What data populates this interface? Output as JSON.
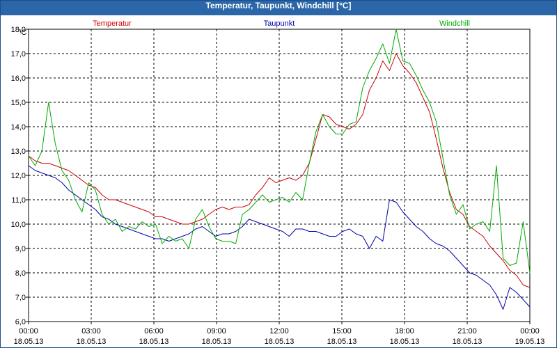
{
  "window": {
    "title": "Temperatur, Taupunkt, Windchill [°C]"
  },
  "chart_data": {
    "type": "line",
    "title": "Temperatur, Taupunkt, Windchill [°C]",
    "y_unit": "°C",
    "ylim": [
      6.0,
      18.0
    ],
    "y_ticks": [
      "6,0",
      "7,0",
      "8,0",
      "9,0",
      "10,0",
      "11,0",
      "12,0",
      "13,0",
      "14,0",
      "15,0",
      "16,0",
      "17,0",
      "18,0"
    ],
    "x_ticks": [
      {
        "time": "00:00",
        "date": "18.05.13"
      },
      {
        "time": "03:00",
        "date": "18.05.13"
      },
      {
        "time": "06:00",
        "date": "18.05.13"
      },
      {
        "time": "09:00",
        "date": "18.05.13"
      },
      {
        "time": "12:00",
        "date": "18.05.13"
      },
      {
        "time": "15:00",
        "date": "18.05.13"
      },
      {
        "time": "18:00",
        "date": "18.05.13"
      },
      {
        "time": "21:00",
        "date": "18.05.13"
      },
      {
        "time": "00:00",
        "date": "19.05.13"
      }
    ],
    "x_start": "18.05.13 00:00",
    "x_end": "19.05.13 00:00",
    "sample_interval": "20 min",
    "grid": true,
    "grid_style": "dashed",
    "legend_placement": "top",
    "colors": {
      "window_title_bar": "#2a66a8",
      "grid": "#000000"
    },
    "series": [
      {
        "name": "Temperatur",
        "color": "#cc0000",
        "values": [
          12.8,
          12.6,
          12.5,
          12.5,
          12.4,
          12.3,
          12.2,
          12.0,
          11.8,
          11.6,
          11.5,
          11.2,
          11.0,
          11.0,
          10.9,
          10.8,
          10.7,
          10.6,
          10.5,
          10.3,
          10.3,
          10.2,
          10.1,
          10.0,
          10.0,
          10.1,
          10.2,
          10.4,
          10.6,
          10.7,
          10.6,
          10.7,
          10.7,
          10.8,
          11.2,
          11.5,
          11.9,
          11.7,
          11.8,
          11.9,
          11.8,
          12.0,
          12.5,
          13.5,
          14.5,
          14.4,
          14.1,
          14.0,
          13.9,
          14.1,
          14.5,
          15.5,
          16.0,
          16.7,
          16.3,
          17.0,
          16.5,
          16.2,
          15.8,
          15.2,
          14.6,
          13.5,
          12.3,
          11.3,
          10.6,
          10.4,
          9.9,
          9.7,
          9.5,
          9.1,
          8.8,
          8.5,
          8.1,
          7.9,
          7.5,
          7.4
        ]
      },
      {
        "name": "Taupunkt",
        "color": "#0000aa",
        "values": [
          12.4,
          12.2,
          12.1,
          12.0,
          11.9,
          11.7,
          11.4,
          11.2,
          11.0,
          10.8,
          10.6,
          10.3,
          10.2,
          10.0,
          9.9,
          9.8,
          9.7,
          9.6,
          9.5,
          9.4,
          9.4,
          9.3,
          9.4,
          9.5,
          9.6,
          9.8,
          9.9,
          9.7,
          9.5,
          9.6,
          9.6,
          9.7,
          9.9,
          10.2,
          10.1,
          10.0,
          9.9,
          9.8,
          9.7,
          9.5,
          9.8,
          9.8,
          9.7,
          9.7,
          9.6,
          9.5,
          9.5,
          9.7,
          9.8,
          9.6,
          9.5,
          9.0,
          9.5,
          9.3,
          11.0,
          10.9,
          10.5,
          10.2,
          9.9,
          9.7,
          9.4,
          9.2,
          9.1,
          8.9,
          8.6,
          8.3,
          8.0,
          7.9,
          7.7,
          7.5,
          7.1,
          6.5,
          7.4,
          7.2,
          6.9,
          6.6
        ]
      },
      {
        "name": "Windchill",
        "color": "#00aa00",
        "values": [
          12.8,
          12.4,
          13.0,
          15.0,
          13.3,
          12.2,
          11.8,
          11.0,
          10.5,
          11.7,
          11.4,
          10.4,
          10.0,
          10.2,
          9.7,
          9.9,
          9.8,
          10.1,
          9.9,
          10.0,
          9.2,
          9.5,
          9.3,
          9.4,
          9.0,
          10.2,
          10.6,
          9.9,
          9.4,
          9.3,
          9.3,
          9.2,
          10.4,
          10.6,
          10.9,
          11.2,
          10.9,
          11.0,
          11.1,
          10.9,
          11.3,
          11.0,
          12.5,
          13.8,
          14.5,
          14.0,
          13.7,
          13.7,
          14.1,
          14.2,
          15.6,
          16.3,
          16.8,
          17.4,
          16.6,
          18.0,
          16.7,
          16.6,
          16.1,
          15.5,
          15.0,
          14.2,
          12.7,
          11.2,
          10.4,
          10.8,
          9.8,
          10.0,
          10.1,
          9.7,
          12.4,
          8.6,
          8.3,
          8.4,
          10.1,
          8.0
        ]
      }
    ]
  }
}
